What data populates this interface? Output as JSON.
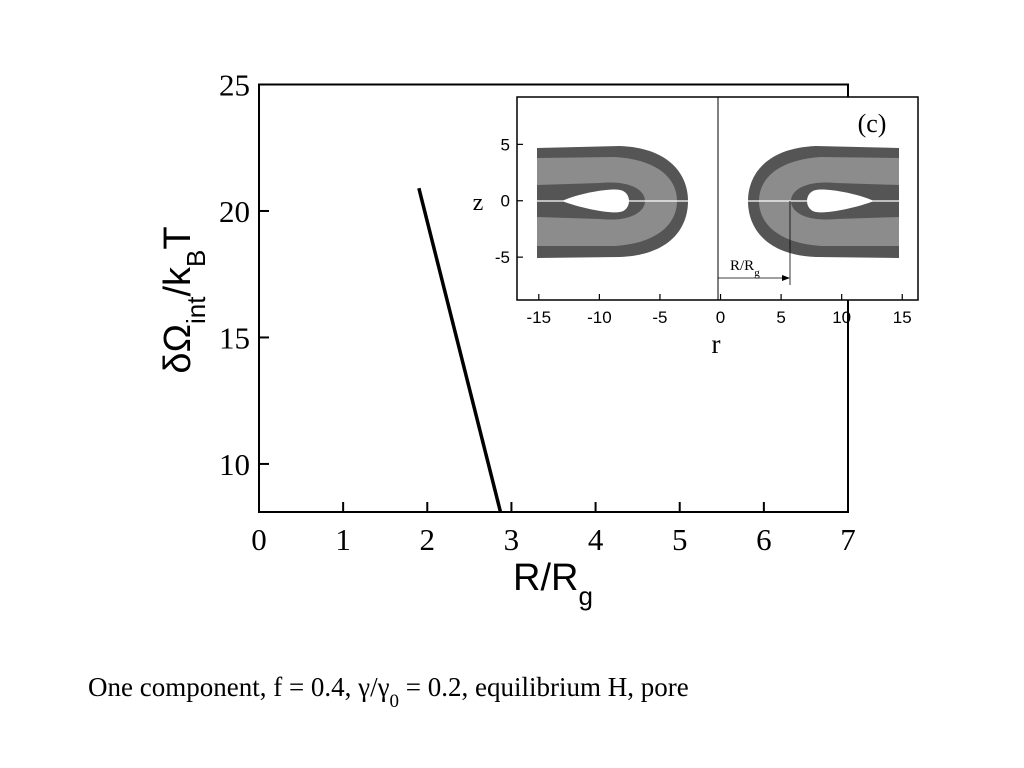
{
  "chart_data": [
    {
      "type": "line",
      "xlabel": [
        "R/R",
        "g"
      ],
      "ylabel": [
        "δΩ",
        "int",
        "/k",
        "B",
        "T"
      ],
      "series": [
        {
          "color": "#000000",
          "x": [
            1.9,
            2.87
          ],
          "values": [
            20.9,
            8.1
          ]
        }
      ],
      "xlim": [
        0,
        7
      ],
      "ylim": [
        8.1,
        25
      ],
      "xticks": [
        0,
        1,
        2,
        3,
        4,
        5,
        6,
        7
      ],
      "yticks": [
        10,
        15,
        20,
        25
      ]
    },
    {
      "type": "inset",
      "title": "(c)",
      "xlabel": "r",
      "ylabel": "z",
      "annotation": [
        "R/R",
        "g"
      ],
      "xlim": [
        -16.8,
        16.3
      ],
      "ylim": [
        -8.8,
        9.2
      ],
      "xticks": [
        -15,
        -10,
        -5,
        0,
        5,
        10,
        15
      ],
      "yticks": [
        -5,
        0,
        5
      ]
    }
  ],
  "caption": [
    "One component, f = 0.4, γ/γ",
    "0",
    " = 0.2, equilibrium H, pore"
  ]
}
